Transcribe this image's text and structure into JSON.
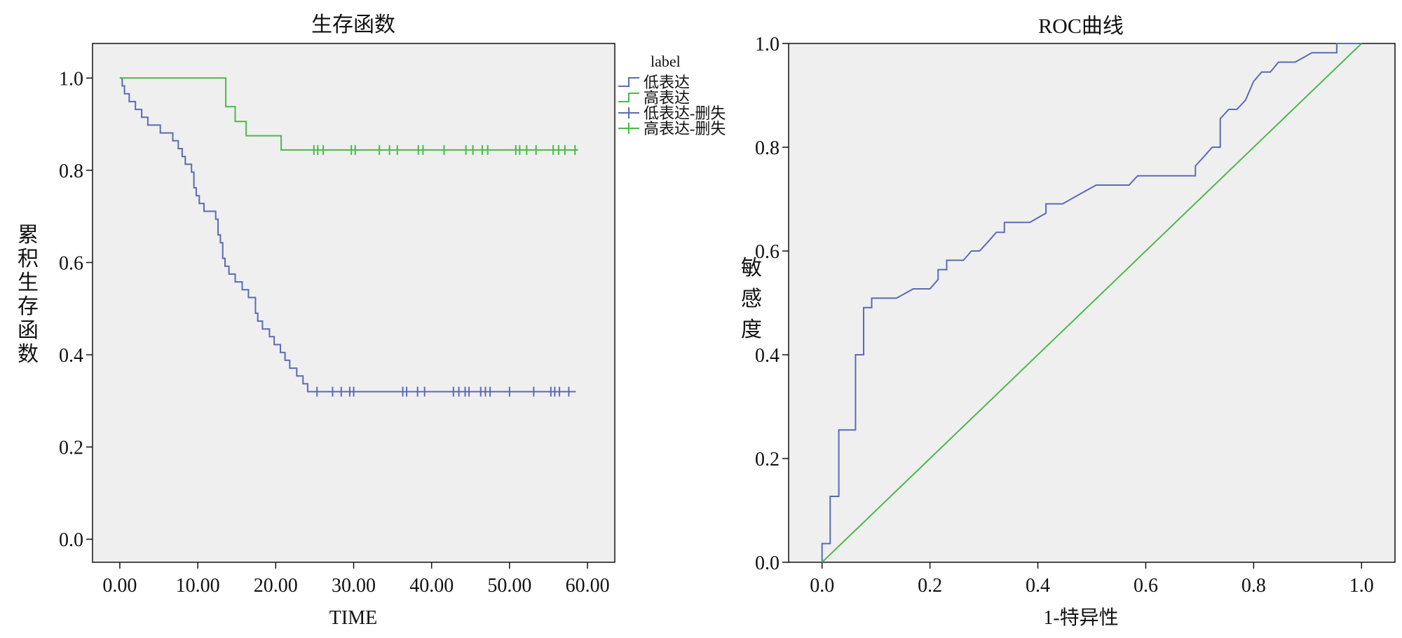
{
  "colors": {
    "low": "#5b6bb5",
    "high": "#4cb84c",
    "plot_bg": "#efefef",
    "axis": "#111111"
  },
  "chart_data": [
    {
      "type": "line",
      "title": "生存函数",
      "xlabel": "TIME",
      "ylabel": "累积生存函数",
      "xlim": [
        -3.5,
        63.5
      ],
      "ylim": [
        -0.05,
        1.075
      ],
      "xticks": [
        0,
        10,
        20,
        30,
        40,
        50,
        60
      ],
      "xtick_labels": [
        "0.00",
        "10.00",
        "20.00",
        "30.00",
        "40.00",
        "50.00",
        "60.00"
      ],
      "yticks": [
        0.0,
        0.2,
        0.4,
        0.6,
        0.8,
        1.0
      ],
      "ytick_labels": [
        "0.0",
        "0.2",
        "0.4",
        "0.6",
        "0.8",
        "1.0"
      ],
      "grid": false,
      "legend": {
        "title": "label",
        "position": "outside-right-top",
        "entries": [
          {
            "label": "低表达",
            "kind": "step",
            "color_key": "low"
          },
          {
            "label": "高表达",
            "kind": "step",
            "color_key": "high"
          },
          {
            "label": "低表达-删失",
            "kind": "censor",
            "color_key": "low"
          },
          {
            "label": "高表达-删失",
            "kind": "censor",
            "color_key": "high"
          }
        ]
      },
      "series": [
        {
          "name": "低表达",
          "color_key": "low",
          "steps": [
            [
              0,
              1.0
            ],
            [
              0.3,
              0.983
            ],
            [
              0.6,
              0.966
            ],
            [
              1.2,
              0.949
            ],
            [
              2.0,
              0.932
            ],
            [
              2.8,
              0.915
            ],
            [
              3.6,
              0.898
            ],
            [
              5.2,
              0.881
            ],
            [
              6.8,
              0.864
            ],
            [
              7.5,
              0.847
            ],
            [
              8.0,
              0.83
            ],
            [
              8.4,
              0.813
            ],
            [
              9.2,
              0.796
            ],
            [
              9.5,
              0.762
            ],
            [
              9.8,
              0.745
            ],
            [
              10.2,
              0.728
            ],
            [
              10.8,
              0.711
            ],
            [
              12.3,
              0.694
            ],
            [
              12.6,
              0.66
            ],
            [
              12.9,
              0.643
            ],
            [
              13.2,
              0.609
            ],
            [
              13.5,
              0.592
            ],
            [
              14.0,
              0.575
            ],
            [
              14.8,
              0.558
            ],
            [
              15.7,
              0.541
            ],
            [
              16.5,
              0.524
            ],
            [
              17.4,
              0.49
            ],
            [
              17.7,
              0.473
            ],
            [
              18.3,
              0.456
            ],
            [
              19.2,
              0.439
            ],
            [
              19.8,
              0.422
            ],
            [
              20.6,
              0.405
            ],
            [
              21.2,
              0.388
            ],
            [
              21.8,
              0.371
            ],
            [
              22.7,
              0.354
            ],
            [
              23.5,
              0.337
            ],
            [
              24.1,
              0.32
            ],
            [
              58.5,
              0.32
            ]
          ],
          "censored_times": [
            25.3,
            27.3,
            28.4,
            29.5,
            30.0,
            36.3,
            36.8,
            38.2,
            39.1,
            42.8,
            43.5,
            44.3,
            44.8,
            46.3,
            46.9,
            47.5,
            50.0,
            53.1,
            55.3,
            55.8,
            56.4,
            57.6
          ]
        },
        {
          "name": "高表达",
          "color_key": "high",
          "steps": [
            [
              0,
              1.0
            ],
            [
              13.6,
              0.938
            ],
            [
              14.8,
              0.906
            ],
            [
              16.2,
              0.875
            ],
            [
              20.7,
              0.844
            ],
            [
              58.8,
              0.844
            ]
          ],
          "censored_times": [
            24.9,
            25.4,
            26.1,
            29.7,
            30.2,
            33.3,
            34.6,
            35.6,
            38.3,
            38.9,
            41.6,
            44.4,
            45.3,
            46.5,
            47.2,
            50.8,
            51.3,
            52.2,
            53.4,
            55.6,
            56.3,
            57.1,
            58.4
          ]
        }
      ]
    },
    {
      "type": "line",
      "title": "ROC曲线",
      "xlabel": "1-特异性",
      "ylabel": "敏感度",
      "xlim": [
        -0.062,
        1.062
      ],
      "ylim": [
        0.0,
        1.0
      ],
      "xticks": [
        0.0,
        0.2,
        0.4,
        0.6,
        0.8,
        1.0
      ],
      "xtick_labels": [
        "0.0",
        "0.2",
        "0.4",
        "0.6",
        "0.8",
        "1.0"
      ],
      "yticks": [
        0.0,
        0.2,
        0.4,
        0.6,
        0.8,
        1.0
      ],
      "ytick_labels": [
        "0.0",
        "0.2",
        "0.4",
        "0.6",
        "0.8",
        "1.0"
      ],
      "grid": false,
      "series": [
        {
          "color_key": "low",
          "points": [
            [
              0.0,
              0.0
            ],
            [
              0.0,
              0.036
            ],
            [
              0.015,
              0.036
            ],
            [
              0.015,
              0.127
            ],
            [
              0.031,
              0.127
            ],
            [
              0.031,
              0.255
            ],
            [
              0.062,
              0.255
            ],
            [
              0.062,
              0.4
            ],
            [
              0.077,
              0.4
            ],
            [
              0.077,
              0.491
            ],
            [
              0.092,
              0.491
            ],
            [
              0.092,
              0.509
            ],
            [
              0.138,
              0.509
            ],
            [
              0.169,
              0.527
            ],
            [
              0.2,
              0.527
            ],
            [
              0.215,
              0.545
            ],
            [
              0.215,
              0.564
            ],
            [
              0.231,
              0.564
            ],
            [
              0.231,
              0.582
            ],
            [
              0.262,
              0.582
            ],
            [
              0.277,
              0.6
            ],
            [
              0.292,
              0.6
            ],
            [
              0.308,
              0.618
            ],
            [
              0.323,
              0.636
            ],
            [
              0.338,
              0.636
            ],
            [
              0.338,
              0.655
            ],
            [
              0.385,
              0.655
            ],
            [
              0.415,
              0.673
            ],
            [
              0.415,
              0.691
            ],
            [
              0.446,
              0.691
            ],
            [
              0.477,
              0.709
            ],
            [
              0.508,
              0.727
            ],
            [
              0.569,
              0.727
            ],
            [
              0.585,
              0.745
            ],
            [
              0.692,
              0.745
            ],
            [
              0.692,
              0.764
            ],
            [
              0.708,
              0.782
            ],
            [
              0.723,
              0.8
            ],
            [
              0.738,
              0.8
            ],
            [
              0.738,
              0.855
            ],
            [
              0.754,
              0.873
            ],
            [
              0.769,
              0.873
            ],
            [
              0.785,
              0.891
            ],
            [
              0.8,
              0.927
            ],
            [
              0.815,
              0.945
            ],
            [
              0.831,
              0.945
            ],
            [
              0.846,
              0.964
            ],
            [
              0.877,
              0.964
            ],
            [
              0.908,
              0.982
            ],
            [
              0.954,
              0.982
            ],
            [
              0.954,
              1.0
            ],
            [
              1.0,
              1.0
            ]
          ]
        },
        {
          "color_key": "high",
          "points": [
            [
              0.0,
              0.0
            ],
            [
              1.0,
              1.0
            ]
          ]
        }
      ]
    }
  ]
}
